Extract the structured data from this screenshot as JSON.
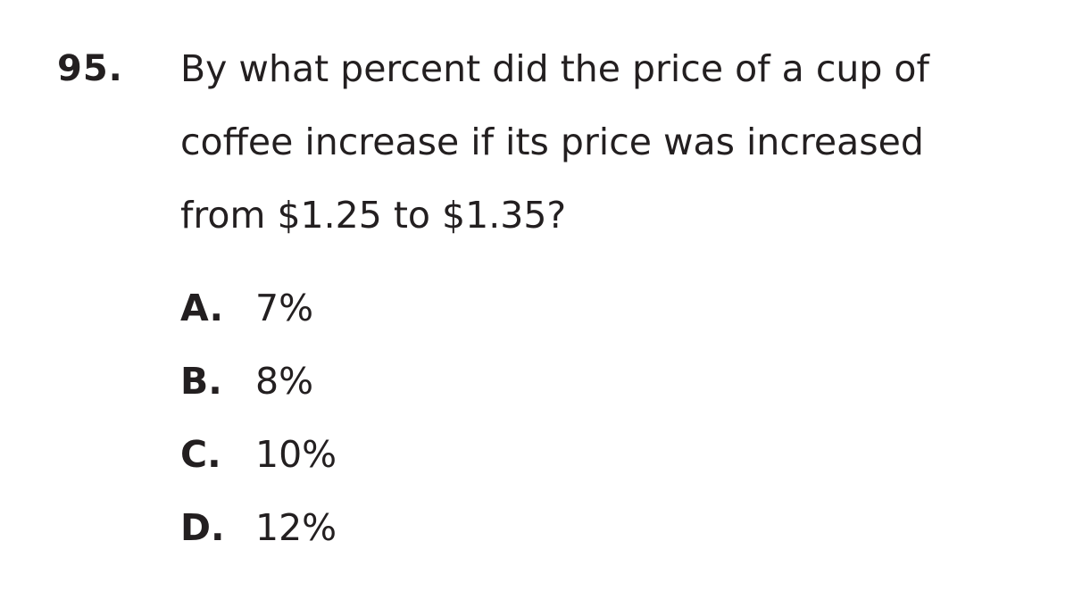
{
  "question": {
    "number": "95.",
    "lines": [
      "By what percent did the price of a cup of",
      "coffee increase if its price was increased",
      "from $1.25 to $1.35?"
    ]
  },
  "options": [
    {
      "letter": "A.",
      "value": "7%"
    },
    {
      "letter": "B.",
      "value": "8%"
    },
    {
      "letter": "C.",
      "value": "10%"
    },
    {
      "letter": "D.",
      "value": "12%"
    }
  ]
}
